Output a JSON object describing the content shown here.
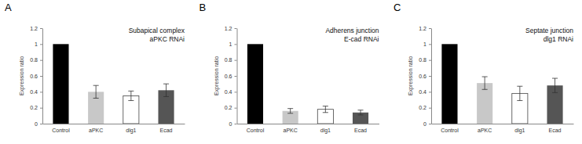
{
  "chart_data": [
    {
      "type": "bar",
      "title": "A",
      "annotations": [
        "Subapical complex",
        "aPKC RNAi"
      ],
      "y_label": "Expression ratio",
      "categories": [
        "Control",
        "aPKC",
        "dlg1",
        "Ecad"
      ],
      "values": [
        1,
        0.4,
        0.35,
        0.42
      ],
      "errors": [
        null,
        0.08,
        0.06,
        0.08
      ],
      "colors": [
        "#000000",
        "#c8c8c8",
        "#ffffff",
        "#555555"
      ],
      "ylim": [
        0,
        1.2
      ],
      "yticks": [
        0,
        0.2,
        0.4,
        0.6,
        0.8,
        1,
        1.2
      ],
      "grid": false
    },
    {
      "type": "bar",
      "title": "B",
      "annotations": [
        "Adherens junction",
        "E-cad RNAi"
      ],
      "y_label": "Expression ratio",
      "categories": [
        "Control",
        "aPKC",
        "dlg1",
        "Ecad"
      ],
      "values": [
        1,
        0.16,
        0.18,
        0.14
      ],
      "errors": [
        null,
        0.03,
        0.04,
        0.03
      ],
      "colors": [
        "#000000",
        "#c8c8c8",
        "#ffffff",
        "#555555"
      ],
      "ylim": [
        0,
        1.2
      ],
      "yticks": [
        0,
        0.2,
        0.4,
        0.6,
        0.8,
        1,
        1.2
      ],
      "grid": false
    },
    {
      "type": "bar",
      "title": "C",
      "annotations": [
        "Septate junction",
        "dlg1 RNAi"
      ],
      "y_label": "Expression ratio",
      "categories": [
        "Control",
        "aPKC",
        "dlg1",
        "Ecad"
      ],
      "values": [
        1,
        0.51,
        0.38,
        0.48
      ],
      "errors": [
        null,
        0.08,
        0.09,
        0.09
      ],
      "colors": [
        "#000000",
        "#c8c8c8",
        "#ffffff",
        "#555555"
      ],
      "ylim": [
        0,
        1.2
      ],
      "yticks": [
        0,
        0.2,
        0.4,
        0.6,
        0.8,
        1,
        1.2
      ],
      "grid": false
    }
  ]
}
